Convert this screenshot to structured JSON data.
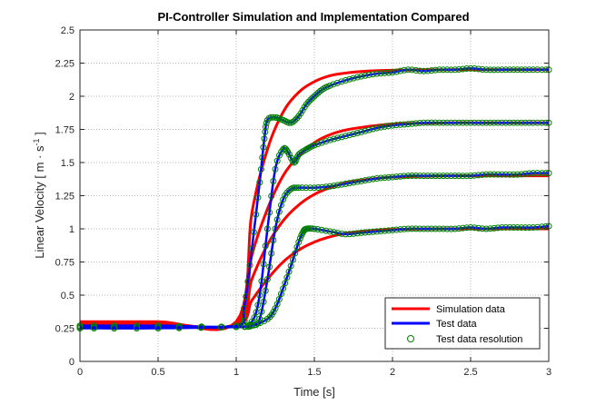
{
  "chart_data": {
    "type": "line",
    "title": "PI-Controller Simulation and Implementation Compared",
    "xlabel": "Time [s]",
    "ylabel": "Linear Velocity [ m · s",
    "ylabel_superscript": "-1",
    "ylabel_suffix": " ]",
    "xlim": [
      0,
      3
    ],
    "ylim": [
      0,
      2.5
    ],
    "xticks": [
      0,
      0.5,
      1,
      1.5,
      2,
      2.5,
      3
    ],
    "xtick_labels": [
      "0",
      "0.5",
      "1",
      "1.5",
      "2",
      "2.5",
      "3"
    ],
    "yticks": [
      0,
      0.25,
      0.5,
      0.75,
      1,
      1.25,
      1.5,
      1.75,
      2,
      2.25,
      2.5
    ],
    "ytick_labels": [
      "0",
      "0.25",
      "0.5",
      "0.75",
      "1",
      "1.25",
      "1.5",
      "1.75",
      "2",
      "2.25",
      "2.5"
    ],
    "grid": true,
    "legend_position": "bottom-right",
    "legend": [
      {
        "label": "Simulation data",
        "style": "line",
        "color": "#ff0000"
      },
      {
        "label": "Test data",
        "style": "line",
        "color": "#0000ff"
      },
      {
        "label": "Test data resolution",
        "style": "marker",
        "color": "#008000"
      }
    ],
    "series": [
      {
        "group": "simulation",
        "color": "#ff0000",
        "x": [
          0,
          0.5,
          1.0,
          1.1,
          1.2,
          1.3,
          1.4,
          1.5,
          1.6,
          1.7,
          1.8,
          1.9,
          2.0,
          2.2,
          2.4,
          2.6,
          3.0
        ],
        "y": [
          0.3,
          0.3,
          0.3,
          1.12,
          1.6,
          1.88,
          2.03,
          2.11,
          2.155,
          2.175,
          2.187,
          2.193,
          2.196,
          2.199,
          2.2,
          2.2,
          2.2
        ]
      },
      {
        "group": "simulation",
        "color": "#ff0000",
        "x": [
          0,
          0.5,
          1.0,
          1.1,
          1.2,
          1.3,
          1.4,
          1.5,
          1.6,
          1.7,
          1.8,
          1.9,
          2.0,
          2.2,
          2.4,
          2.6,
          3.0
        ],
        "y": [
          0.29,
          0.29,
          0.29,
          0.8,
          1.15,
          1.4,
          1.55,
          1.65,
          1.71,
          1.745,
          1.765,
          1.78,
          1.79,
          1.797,
          1.8,
          1.8,
          1.8
        ]
      },
      {
        "group": "simulation",
        "color": "#ff0000",
        "x": [
          0,
          0.5,
          1.0,
          1.1,
          1.2,
          1.3,
          1.4,
          1.5,
          1.6,
          1.7,
          1.8,
          1.9,
          2.0,
          2.2,
          2.4,
          2.6,
          3.0
        ],
        "y": [
          0.28,
          0.28,
          0.28,
          0.62,
          0.88,
          1.06,
          1.18,
          1.26,
          1.31,
          1.345,
          1.365,
          1.38,
          1.39,
          1.397,
          1.4,
          1.4,
          1.4
        ]
      },
      {
        "group": "simulation",
        "color": "#ff0000",
        "x": [
          0,
          0.5,
          1.0,
          1.1,
          1.2,
          1.3,
          1.4,
          1.5,
          1.6,
          1.7,
          1.8,
          1.9,
          2.0,
          2.2,
          2.4,
          2.6,
          3.0
        ],
        "y": [
          0.27,
          0.27,
          0.27,
          0.46,
          0.62,
          0.75,
          0.84,
          0.9,
          0.94,
          0.965,
          0.98,
          0.99,
          0.995,
          0.999,
          1.0,
          1.0,
          1.0
        ]
      },
      {
        "group": "test",
        "color": "#0000ff",
        "x": [
          0,
          0.5,
          1.0,
          1.05,
          1.1,
          1.15,
          1.18,
          1.2,
          1.25,
          1.3,
          1.35,
          1.4,
          1.45,
          1.5,
          1.55,
          1.6,
          1.7,
          1.8,
          1.9,
          2.0,
          2.1,
          2.2,
          2.3,
          2.4,
          2.5,
          2.6,
          2.7,
          2.8,
          2.9,
          3.0
        ],
        "y": [
          0.27,
          0.27,
          0.27,
          0.4,
          0.85,
          1.35,
          1.68,
          1.82,
          1.84,
          1.82,
          1.8,
          1.85,
          1.94,
          2.0,
          2.05,
          2.08,
          2.12,
          2.15,
          2.17,
          2.18,
          2.2,
          2.19,
          2.2,
          2.2,
          2.21,
          2.2,
          2.2,
          2.2,
          2.2,
          2.2
        ]
      },
      {
        "group": "test",
        "color": "#0000ff",
        "x": [
          0,
          0.5,
          1.0,
          1.1,
          1.15,
          1.2,
          1.25,
          1.3,
          1.33,
          1.37,
          1.4,
          1.45,
          1.5,
          1.6,
          1.7,
          1.8,
          1.9,
          2.0,
          2.1,
          2.2,
          2.3,
          2.4,
          2.5,
          2.6,
          2.7,
          2.8,
          2.9,
          3.0
        ],
        "y": [
          0.26,
          0.26,
          0.26,
          0.3,
          0.5,
          1.0,
          1.45,
          1.6,
          1.58,
          1.5,
          1.56,
          1.6,
          1.63,
          1.67,
          1.7,
          1.73,
          1.76,
          1.78,
          1.79,
          1.8,
          1.8,
          1.8,
          1.8,
          1.8,
          1.8,
          1.8,
          1.8,
          1.8
        ]
      },
      {
        "group": "test",
        "color": "#0000ff",
        "x": [
          0,
          0.5,
          1.0,
          1.1,
          1.15,
          1.2,
          1.25,
          1.3,
          1.35,
          1.4,
          1.5,
          1.6,
          1.7,
          1.8,
          1.9,
          2.0,
          2.1,
          2.2,
          2.3,
          2.4,
          2.5,
          2.6,
          2.7,
          2.8,
          2.9,
          3.0
        ],
        "y": [
          0.26,
          0.26,
          0.26,
          0.27,
          0.32,
          0.62,
          1.0,
          1.22,
          1.3,
          1.31,
          1.31,
          1.32,
          1.34,
          1.36,
          1.38,
          1.39,
          1.4,
          1.4,
          1.4,
          1.4,
          1.4,
          1.41,
          1.41,
          1.41,
          1.42,
          1.42
        ]
      },
      {
        "group": "test",
        "color": "#0000ff",
        "x": [
          0,
          0.5,
          1.0,
          1.1,
          1.2,
          1.25,
          1.3,
          1.35,
          1.4,
          1.43,
          1.45,
          1.5,
          1.6,
          1.7,
          1.8,
          1.9,
          2.0,
          2.1,
          2.2,
          2.3,
          2.4,
          2.5,
          2.6,
          2.7,
          2.8,
          2.9,
          3.0
        ],
        "y": [
          0.25,
          0.25,
          0.26,
          0.27,
          0.32,
          0.4,
          0.55,
          0.72,
          0.9,
          0.98,
          1.0,
          1.0,
          0.98,
          0.96,
          0.97,
          0.98,
          0.99,
          1.0,
          1.0,
          1.0,
          1.0,
          1.01,
          1.0,
          1.01,
          1.01,
          1.01,
          1.02
        ]
      }
    ]
  }
}
